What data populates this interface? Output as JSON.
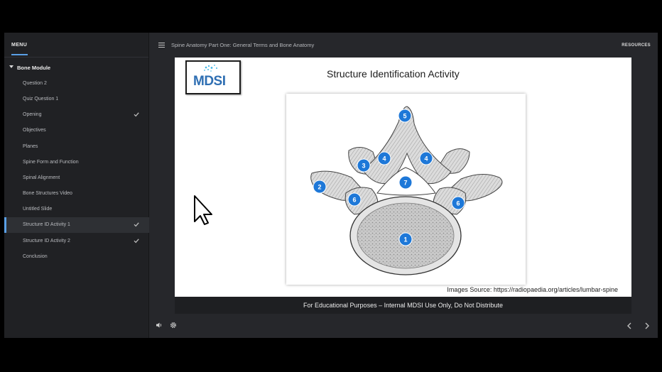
{
  "menu": {
    "title": "MENU",
    "section": "Bone Module",
    "items": [
      {
        "label": "Question 2",
        "completed": false,
        "active": false
      },
      {
        "label": "Quiz Question 1",
        "completed": false,
        "active": false
      },
      {
        "label": "Opening",
        "completed": true,
        "active": false
      },
      {
        "label": "Objectives",
        "completed": false,
        "active": false
      },
      {
        "label": "Planes",
        "completed": false,
        "active": false
      },
      {
        "label": "Spine Form and Function",
        "completed": false,
        "active": false
      },
      {
        "label": "Spinal Alignment",
        "completed": false,
        "active": false
      },
      {
        "label": "Bone Structures Video",
        "completed": false,
        "active": false
      },
      {
        "label": "Untitled Slide",
        "completed": false,
        "active": false
      },
      {
        "label": "Structure ID Activity 1",
        "completed": true,
        "active": true
      },
      {
        "label": "Structure ID Activity 2",
        "completed": true,
        "active": false
      },
      {
        "label": "Conclusion",
        "completed": false,
        "active": false
      }
    ]
  },
  "header": {
    "course_title": "Spine Anatomy Part One: General Terms and Bone Anatomy",
    "resources_label": "RESOURCES"
  },
  "slide": {
    "logo_text": "MDSI",
    "title": "Structure Identification Activity",
    "image_source": "Images Source: https://radiopaedia.org/articles/lumbar-spine",
    "markers": [
      "1",
      "2",
      "3",
      "4",
      "4",
      "5",
      "6",
      "6",
      "7"
    ]
  },
  "caption": "For Educational Purposes – Internal MDSI Use Only, Do Not Distribute",
  "controls": {
    "icons": [
      "volume-icon",
      "settings-icon",
      "prev-arrow-icon",
      "next-arrow-icon"
    ]
  },
  "colors": {
    "accent": "#5aa0e6",
    "marker": "#1e78d8",
    "sidebar_bg": "#202124",
    "player_bg": "#26272b"
  }
}
